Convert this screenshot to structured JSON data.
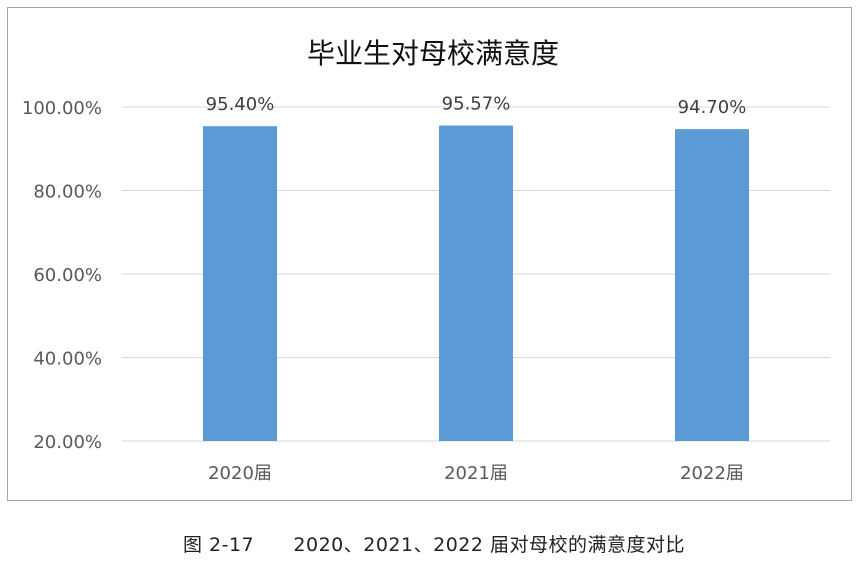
{
  "chart_data": {
    "type": "bar",
    "title": "毕业生对母校满意度",
    "categories": [
      "2020届",
      "2021届",
      "2022届"
    ],
    "values": [
      95.4,
      95.57,
      94.7
    ],
    "data_labels": [
      "95.40%",
      "95.57%",
      "94.70%"
    ],
    "ylim": [
      20,
      100
    ],
    "yticks": [
      20,
      40,
      60,
      80,
      100
    ],
    "ytick_labels": [
      "20.00%",
      "40.00%",
      "60.00%",
      "80.00%",
      "100.00%"
    ],
    "grid": true,
    "legend": "none",
    "bar_color": "#5b9bd5",
    "grid_color": "#d9d9d9"
  },
  "caption": {
    "figure_number": "图 2-17",
    "text": "2020、2021、2022 届对母校的满意度对比"
  }
}
